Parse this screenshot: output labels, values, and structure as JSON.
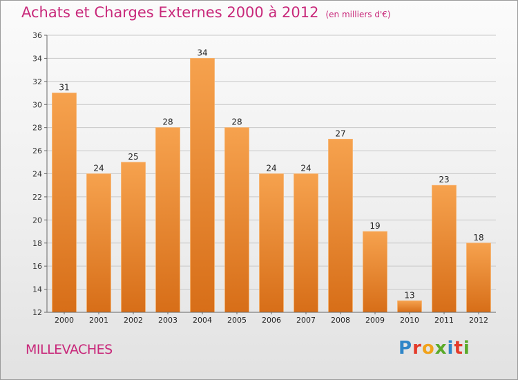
{
  "header": {
    "title": "Achats et Charges Externes 2000 à 2012",
    "subtitle": "(en milliers d'€)"
  },
  "footer": {
    "place": "MILLEVACHES",
    "logo": "Proxiti"
  },
  "colors": {
    "accent": "#c8287a",
    "bar_top": "#f6a24e",
    "bar_bottom": "#d76e18",
    "grid": "#c8c8c8"
  },
  "chart_data": {
    "type": "bar",
    "title": "Achats et Charges Externes 2000 à 2012",
    "subtitle": "(en milliers d'€)",
    "xlabel": "",
    "ylabel": "",
    "categories": [
      "2000",
      "2001",
      "2002",
      "2003",
      "2004",
      "2005",
      "2006",
      "2007",
      "2008",
      "2009",
      "2010",
      "2011",
      "2012"
    ],
    "values": [
      31,
      24,
      25,
      28,
      34,
      28,
      24,
      24,
      27,
      19,
      13,
      23,
      18
    ],
    "ylim": [
      12,
      36
    ],
    "yticks": [
      12,
      14,
      16,
      18,
      20,
      22,
      24,
      26,
      28,
      30,
      32,
      34,
      36
    ],
    "grid": true,
    "data_labels": true
  }
}
